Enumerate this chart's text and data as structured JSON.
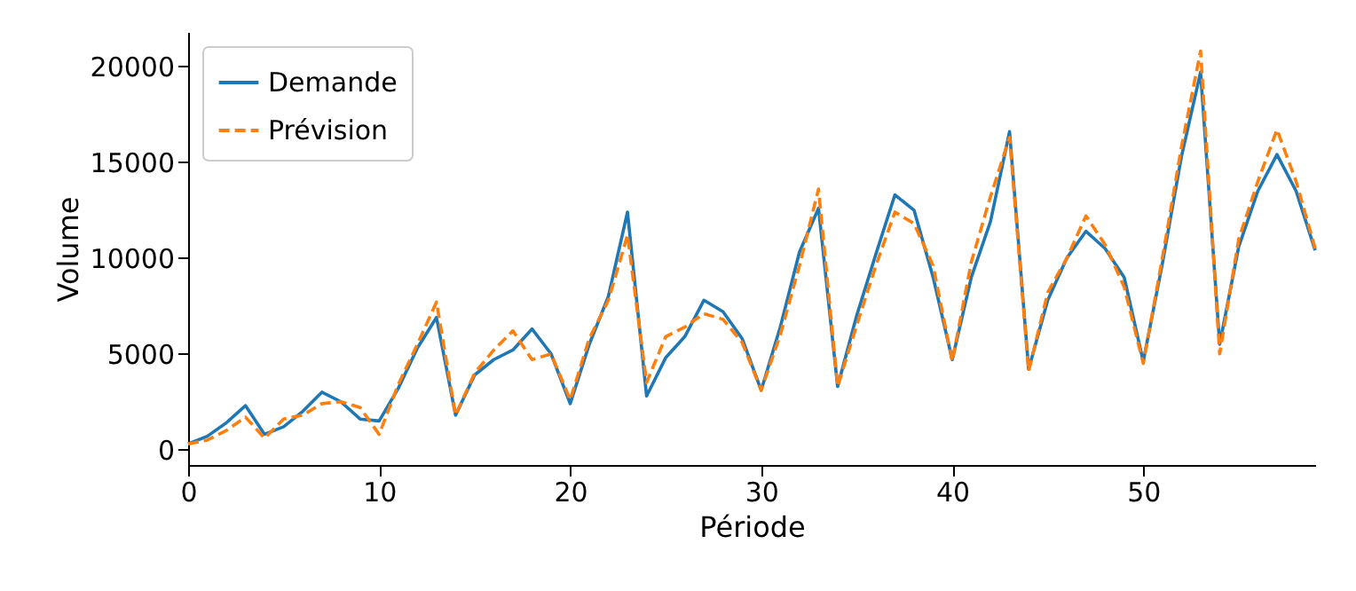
{
  "chart_data": {
    "type": "line",
    "xlabel": "Période",
    "ylabel": "Volume",
    "x": [
      0,
      1,
      2,
      3,
      4,
      5,
      6,
      7,
      8,
      9,
      10,
      11,
      12,
      13,
      14,
      15,
      16,
      17,
      18,
      19,
      20,
      21,
      22,
      23,
      24,
      25,
      26,
      27,
      28,
      29,
      30,
      31,
      32,
      33,
      34,
      35,
      36,
      37,
      38,
      39,
      40,
      41,
      42,
      43,
      44,
      45,
      46,
      47,
      48,
      49,
      50,
      51,
      52,
      53,
      54,
      55,
      56,
      57,
      58,
      59
    ],
    "series": [
      {
        "name": "Demande",
        "color": "#1f77b4",
        "line_style": "solid",
        "values": [
          300,
          700,
          1400,
          2300,
          800,
          1200,
          2000,
          3000,
          2500,
          1600,
          1500,
          3200,
          5300,
          6900,
          1800,
          3900,
          4700,
          5200,
          6300,
          5000,
          2400,
          5500,
          8000,
          12400,
          2800,
          4800,
          5900,
          7800,
          7200,
          5800,
          3100,
          6400,
          10300,
          12600,
          3300,
          7000,
          10200,
          13300,
          12500,
          9000,
          4700,
          9000,
          11900,
          16600,
          4200,
          7800,
          10000,
          11400,
          10500,
          9000,
          4600,
          9700,
          15300,
          19700,
          5500,
          10600,
          13500,
          15400,
          13500,
          10400
        ]
      },
      {
        "name": "Prévision",
        "color": "#ff7f0e",
        "line_style": "dashed",
        "values": [
          300,
          500,
          1000,
          1700,
          600,
          1600,
          1800,
          2400,
          2500,
          2200,
          800,
          3400,
          5500,
          7700,
          1800,
          4000,
          5200,
          6200,
          4700,
          5000,
          2600,
          5800,
          7800,
          11200,
          3500,
          5900,
          6400,
          7100,
          6800,
          5600,
          3100,
          6000,
          9600,
          13600,
          3300,
          6500,
          9600,
          12400,
          11800,
          9600,
          4600,
          9800,
          13200,
          16300,
          4100,
          8200,
          10000,
          12200,
          10700,
          8500,
          4500,
          10000,
          15800,
          20800,
          5000,
          11000,
          14000,
          16700,
          14000,
          10500
        ]
      }
    ],
    "xlim": [
      0,
      59
    ],
    "xticks": [
      0,
      10,
      20,
      30,
      40,
      50
    ],
    "ylim": [
      -800,
      21800
    ],
    "yticks": [
      0,
      5000,
      10000,
      15000,
      20000
    ],
    "grid": false,
    "legend": "top left",
    "marker": "none"
  }
}
